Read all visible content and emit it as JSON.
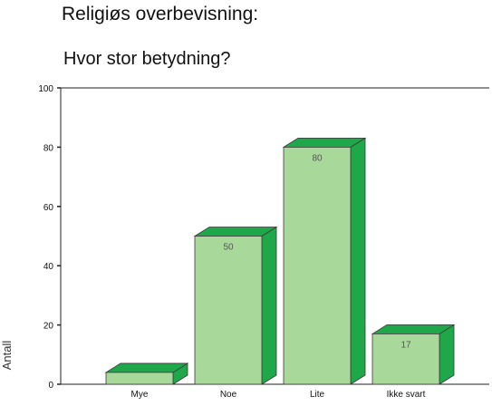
{
  "chart_data": {
    "type": "bar",
    "title": "Religiøs overbevisning:",
    "subtitle": "Hvor stor betydning?",
    "xlabel": "",
    "ylabel": "Antall",
    "categories": [
      "Mye",
      "Noe",
      "Lite",
      "Ikke svart"
    ],
    "values": [
      4,
      50,
      80,
      17
    ],
    "data_labels": [
      "",
      "50",
      "80",
      "17"
    ],
    "ylim": [
      0,
      100
    ],
    "yticks": [
      0,
      20,
      40,
      60,
      80,
      100
    ],
    "grid": false,
    "legend": "none",
    "style": "3d",
    "colors": {
      "bar_front": "#a8d89a",
      "bar_top": "#1fa84a",
      "bar_side": "#1fa84a",
      "bar_outline": "#3a3a3a",
      "axis": "#222222"
    }
  }
}
